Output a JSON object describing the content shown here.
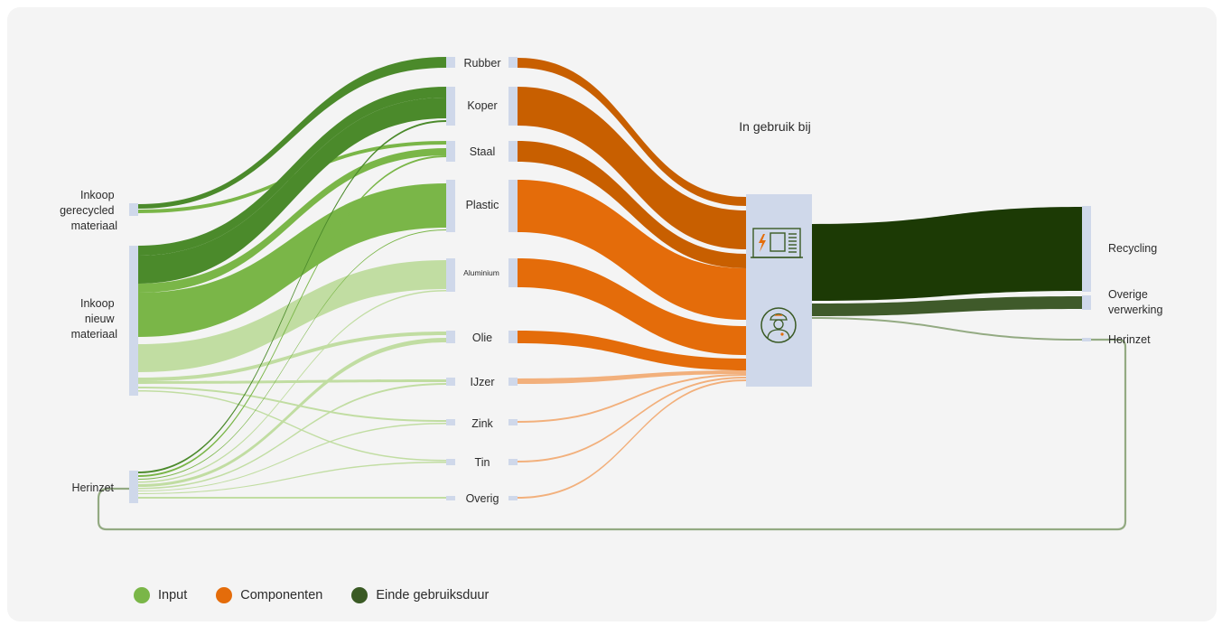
{
  "header": {
    "title": "In gebruik bij"
  },
  "sources": [
    {
      "id": "recycled",
      "lines": [
        "Inkoop",
        "gerecycled",
        "materiaal"
      ]
    },
    {
      "id": "nieuw",
      "lines": [
        "Inkoop",
        "nieuw",
        "materiaal"
      ]
    },
    {
      "id": "herinzet_in",
      "lines": [
        "Herinzet"
      ]
    }
  ],
  "materials": [
    {
      "id": "rubber",
      "label": "Rubber"
    },
    {
      "id": "koper",
      "label": "Koper"
    },
    {
      "id": "staal",
      "label": "Staal"
    },
    {
      "id": "plastic",
      "label": "Plastic"
    },
    {
      "id": "aluminium",
      "label": "Aluminium"
    },
    {
      "id": "olie",
      "label": "Olie"
    },
    {
      "id": "ijzer",
      "label": "IJzer"
    },
    {
      "id": "zink",
      "label": "Zink"
    },
    {
      "id": "tin",
      "label": "Tin"
    },
    {
      "id": "overig",
      "label": "Overig"
    }
  ],
  "usage_icons": [
    "charging-station-icon",
    "technician-icon"
  ],
  "outputs": [
    {
      "id": "recycling",
      "lines": [
        "Recycling"
      ]
    },
    {
      "id": "overige",
      "lines": [
        "Overige",
        "verwerking"
      ]
    },
    {
      "id": "herinzet_out",
      "lines": [
        "Herinzet"
      ]
    }
  ],
  "legend": [
    {
      "label": "Input",
      "color": "#7ab648"
    },
    {
      "label": "Componenten",
      "color": "#e46c0a"
    },
    {
      "label": "Einde gebruiksduur",
      "color": "#3a5a24"
    }
  ],
  "colors": {
    "input_dark": "#4b8a2b",
    "input_mid": "#7ab648",
    "input_light": "#c1dda2",
    "comp_dark": "#c85f00",
    "comp_main": "#e46c0a",
    "comp_light": "#f2b07c",
    "end_dark": "#1c3a05",
    "end_mid": "#3f5a2a",
    "end_light": "#93aa82",
    "node": "#cfd8ea",
    "background": "#f4f4f4"
  }
}
